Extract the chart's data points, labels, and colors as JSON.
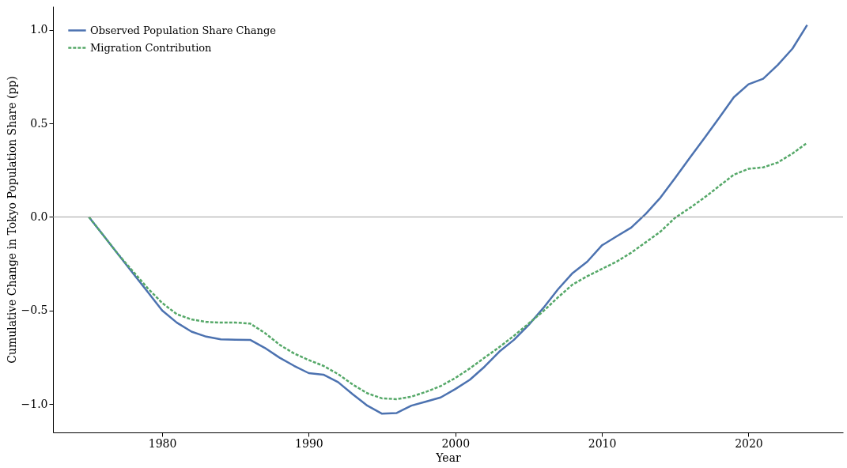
{
  "chart_data": {
    "type": "line",
    "xlabel": "Year",
    "ylabel": "Cumulative Change in Tokyo Population Share (pp)",
    "x": [
      1975,
      1976,
      1977,
      1978,
      1979,
      1980,
      1981,
      1982,
      1983,
      1984,
      1985,
      1986,
      1987,
      1988,
      1989,
      1990,
      1991,
      1992,
      1993,
      1994,
      1995,
      1996,
      1997,
      1998,
      1999,
      2000,
      2001,
      2002,
      2003,
      2004,
      2005,
      2006,
      2007,
      2008,
      2009,
      2010,
      2011,
      2012,
      2013,
      2014,
      2015,
      2016,
      2017,
      2018,
      2019,
      2020,
      2021,
      2022,
      2023,
      2024
    ],
    "series": [
      {
        "name": "Observed Population Share Change",
        "color": "#4c72b0",
        "line_style": "solid",
        "values": [
          0,
          -0.1,
          -0.2,
          -0.3,
          -0.4,
          -0.5,
          -0.565,
          -0.613,
          -0.64,
          -0.654,
          -0.656,
          -0.657,
          -0.7,
          -0.752,
          -0.796,
          -0.835,
          -0.843,
          -0.883,
          -0.948,
          -1.009,
          -1.052,
          -1.048,
          -1.009,
          -0.987,
          -0.965,
          -0.92,
          -0.87,
          -0.8,
          -0.72,
          -0.657,
          -0.578,
          -0.487,
          -0.387,
          -0.3,
          -0.239,
          -0.152,
          -0.104,
          -0.057,
          0.017,
          0.104,
          0.209,
          0.317,
          0.422,
          0.53,
          0.64,
          0.709,
          0.739,
          0.813,
          0.9,
          1.026
        ]
      },
      {
        "name": "Migration Contribution",
        "color": "#55a868",
        "line_style": "dashed",
        "values": [
          0,
          -0.1,
          -0.2,
          -0.29,
          -0.38,
          -0.46,
          -0.52,
          -0.548,
          -0.561,
          -0.565,
          -0.565,
          -0.57,
          -0.62,
          -0.683,
          -0.73,
          -0.765,
          -0.796,
          -0.84,
          -0.896,
          -0.943,
          -0.97,
          -0.974,
          -0.961,
          -0.935,
          -0.904,
          -0.861,
          -0.809,
          -0.752,
          -0.696,
          -0.635,
          -0.57,
          -0.504,
          -0.43,
          -0.361,
          -0.317,
          -0.278,
          -0.239,
          -0.191,
          -0.135,
          -0.078,
          -0.004,
          0.048,
          0.104,
          0.165,
          0.226,
          0.257,
          0.265,
          0.291,
          0.339,
          0.396
        ]
      }
    ],
    "xlim": [
      1972.55,
      2026.45
    ],
    "xticks": [
      1980,
      1990,
      2000,
      2010,
      2020
    ],
    "ylim": [
      -1.152,
      1.126
    ],
    "yticks": [
      {
        "value": -1,
        "label": "−1.0"
      },
      {
        "value": -0.5,
        "label": "−0.5"
      },
      {
        "value": 0,
        "label": "0.0"
      },
      {
        "value": 0.5,
        "label": "0.5"
      },
      {
        "value": 1,
        "label": "1.0"
      }
    ],
    "ref_lines": [
      {
        "axis": "y",
        "value": 0,
        "color": "#a0a0a0"
      }
    ],
    "grid": false,
    "legend": "top left"
  }
}
